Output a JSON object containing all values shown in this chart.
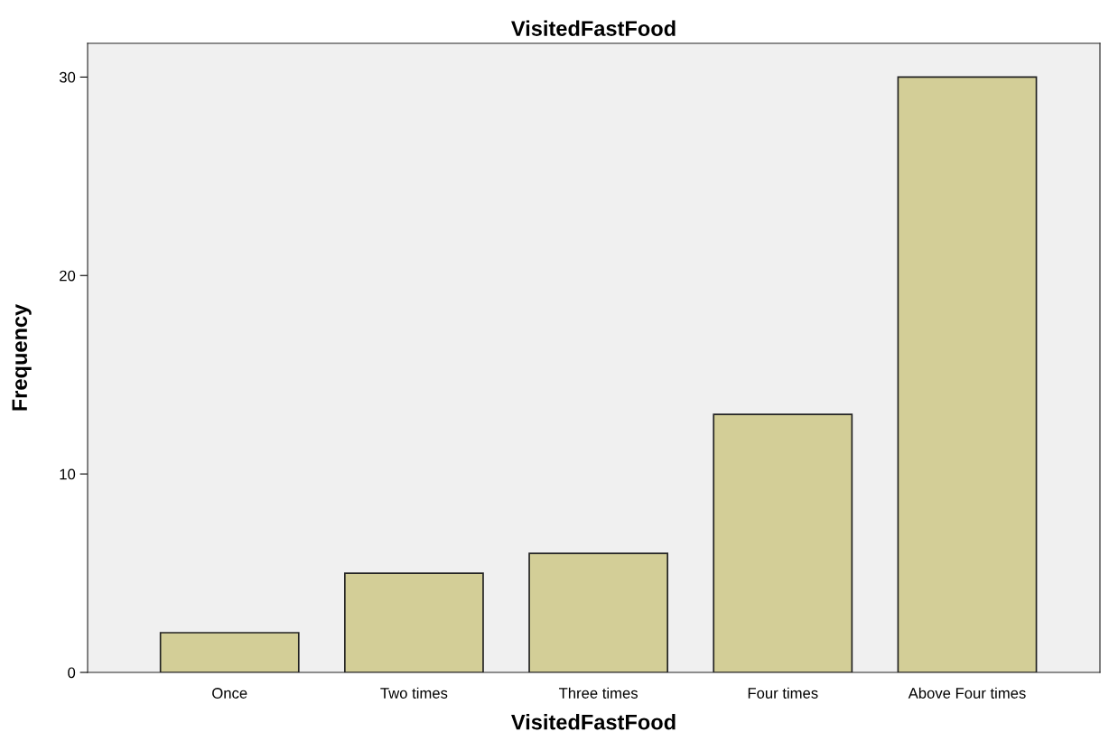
{
  "chart_data": {
    "type": "bar",
    "title": "VisitedFastFood",
    "xlabel": "VisitedFastFood",
    "ylabel": "Frequency",
    "categories": [
      "Once",
      "Two times",
      "Three times",
      "Four times",
      "Above Four times"
    ],
    "values": [
      2,
      5,
      6,
      13,
      30
    ],
    "color": "#d3ce97",
    "ylim": [
      0,
      31.7
    ],
    "yticks": [
      0,
      10,
      20,
      30
    ],
    "grid": false
  }
}
